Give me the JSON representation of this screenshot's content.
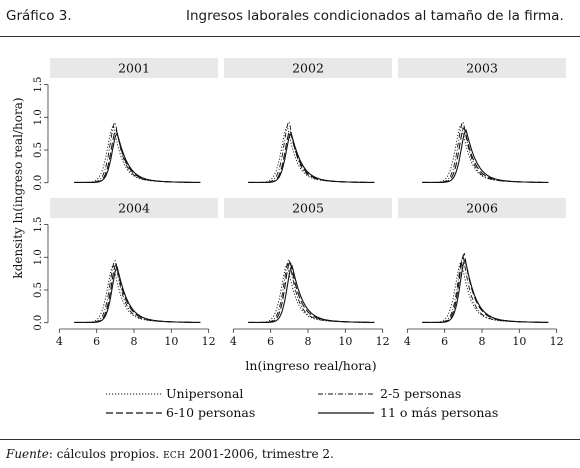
{
  "header": {
    "label": "Gráfico 3.",
    "title": "Ingresos laborales condicionados al tamaño de la firma."
  },
  "source": {
    "prefix": "Fuente",
    "text": ": cálculos propios.",
    "abbr": "ECH",
    "rest": " 2001-2006, trimestre 2."
  },
  "colors": {
    "background": "#ffffff",
    "strip": "#e8e8e8",
    "line": "#111111"
  },
  "chart_data": {
    "type": "line",
    "layout": "small-multiples 3x2",
    "xlabel": "ln(ingreso real/hora)",
    "ylabel": "kdensity ln(ingreso real/hora)",
    "xlim": [
      3.5,
      12.5
    ],
    "ylim": [
      -0.05,
      1.6
    ],
    "xticks": [
      "4",
      "6",
      "8",
      "10",
      "12"
    ],
    "yticks": [
      "0.0",
      "0.5",
      "1.0",
      "1.5"
    ],
    "panels": [
      {
        "title": "2001",
        "peaks": [
          0.93,
          0.99,
          0.86,
          0.8
        ],
        "centers": [
          6.85,
          6.95,
          7.0,
          7.05
        ]
      },
      {
        "title": "2002",
        "peaks": [
          0.92,
          1.0,
          0.84,
          0.8
        ],
        "centers": [
          6.85,
          6.95,
          7.0,
          7.05
        ]
      },
      {
        "title": "2003",
        "peaks": [
          0.95,
          1.0,
          0.9,
          0.85
        ],
        "centers": [
          6.85,
          6.95,
          7.0,
          7.1
        ]
      },
      {
        "title": "2004",
        "peaks": [
          0.94,
          1.02,
          0.95,
          0.9
        ],
        "centers": [
          6.85,
          6.95,
          7.0,
          7.05
        ]
      },
      {
        "title": "2005",
        "peaks": [
          0.95,
          1.04,
          1.0,
          0.92
        ],
        "centers": [
          6.85,
          6.95,
          7.0,
          7.1
        ]
      },
      {
        "title": "2006",
        "peaks": [
          1.0,
          1.08,
          1.12,
          1.02
        ],
        "centers": [
          6.85,
          6.95,
          7.0,
          7.05
        ]
      }
    ],
    "series": [
      {
        "name": "Unipersonal",
        "dash": "dotted"
      },
      {
        "name": "2-5 personas",
        "dash": "dashdot"
      },
      {
        "name": "6-10 personas",
        "dash": "longdash"
      },
      {
        "name": "11 o más personas",
        "dash": "solid"
      }
    ]
  }
}
